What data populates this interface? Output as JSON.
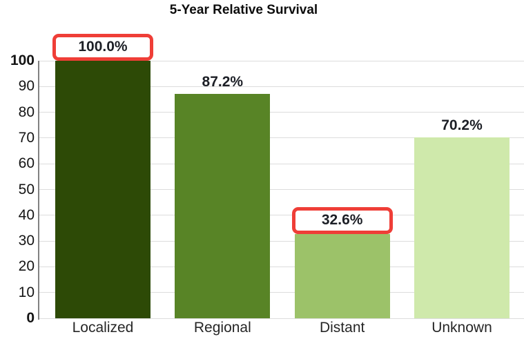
{
  "chart_data": {
    "type": "bar",
    "title": "5-Year Relative Survival",
    "categories": [
      "Localized",
      "Regional",
      "Distant",
      "Unknown"
    ],
    "values": [
      100.0,
      87.2,
      32.6,
      70.2
    ],
    "value_labels": [
      "100.0%",
      "87.2%",
      "32.6%",
      "70.2%"
    ],
    "highlighted_categories": [
      "Localized",
      "Distant"
    ],
    "bar_colors": [
      "#2d4a06",
      "#588426",
      "#9cc269",
      "#cfe9ab"
    ],
    "highlight_border_color": "#ef3e37",
    "xlabel": "",
    "ylabel": "",
    "ylim": [
      0,
      100
    ],
    "yticks": [
      0,
      10,
      20,
      30,
      40,
      50,
      60,
      70,
      80,
      90,
      100
    ],
    "grid": true,
    "legend": "none"
  }
}
